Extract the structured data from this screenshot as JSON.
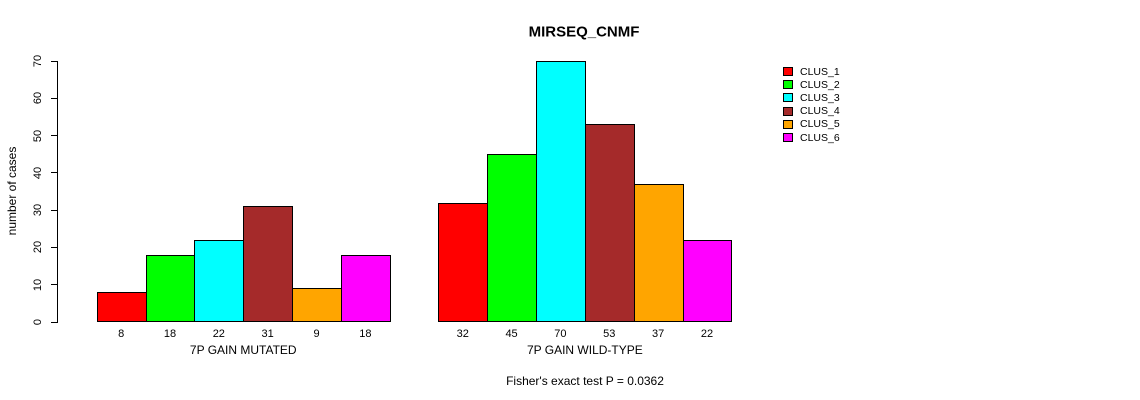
{
  "chart_data": {
    "type": "bar",
    "title": "MIRSEQ_CNMF",
    "ylabel": "number of cases",
    "xlabel": "",
    "ylim": [
      0,
      70
    ],
    "yticks": [
      0,
      10,
      20,
      30,
      40,
      50,
      60,
      70
    ],
    "grid": false,
    "legend_position": "right",
    "categories": [
      "7P GAIN MUTATED",
      "7P GAIN WILD-TYPE"
    ],
    "series": [
      {
        "name": "CLUS_1",
        "color": "#FF0000",
        "values": [
          8,
          32
        ]
      },
      {
        "name": "CLUS_2",
        "color": "#00FF00",
        "values": [
          18,
          45
        ]
      },
      {
        "name": "CLUS_3",
        "color": "#00FFFF",
        "values": [
          22,
          70
        ]
      },
      {
        "name": "CLUS_4",
        "color": "#A52A2A",
        "values": [
          31,
          53
        ]
      },
      {
        "name": "CLUS_5",
        "color": "#FFA500",
        "values": [
          9,
          37
        ]
      },
      {
        "name": "CLUS_6",
        "color": "#FF00FF",
        "values": [
          18,
          22
        ]
      }
    ],
    "annotation": "Fisher's exact test P = 0.0362"
  }
}
